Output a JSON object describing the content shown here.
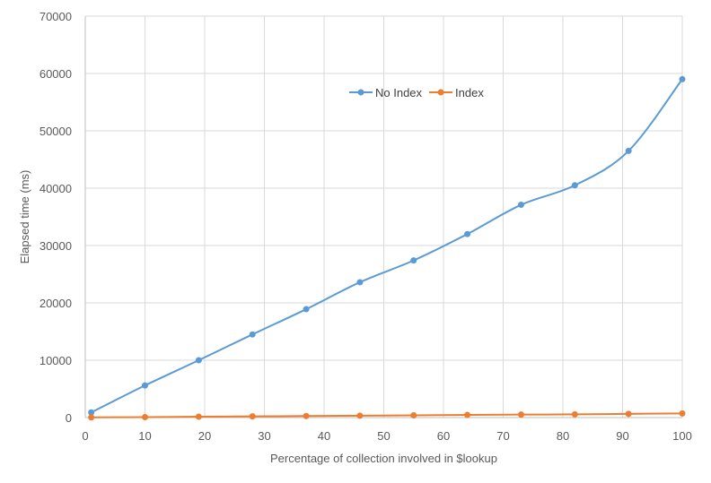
{
  "chart_data": {
    "type": "line",
    "title": "",
    "xlabel": "Percentage of collection involved in $lookup",
    "ylabel": "Elapsed time (ms)",
    "xlim": [
      0,
      100
    ],
    "ylim": [
      0,
      70000
    ],
    "x_ticks": [
      0,
      10,
      20,
      30,
      40,
      50,
      60,
      70,
      80,
      90,
      100
    ],
    "y_ticks": [
      0,
      10000,
      20000,
      30000,
      40000,
      50000,
      60000,
      70000
    ],
    "grid": true,
    "legend_position": "top-center",
    "series": [
      {
        "name": "No Index",
        "color": "#5b9bd5",
        "x": [
          1,
          10,
          19,
          28,
          37,
          46,
          55,
          64,
          73,
          82,
          91,
          100
        ],
        "y": [
          900,
          5600,
          10000,
          14500,
          18900,
          23600,
          27400,
          32000,
          37100,
          40500,
          46500,
          59000
        ]
      },
      {
        "name": "Index",
        "color": "#ed7d31",
        "x": [
          1,
          10,
          19,
          28,
          37,
          46,
          55,
          64,
          73,
          82,
          91,
          100
        ],
        "y": [
          30,
          80,
          150,
          210,
          270,
          330,
          390,
          460,
          520,
          560,
          650,
          720
        ]
      }
    ]
  }
}
